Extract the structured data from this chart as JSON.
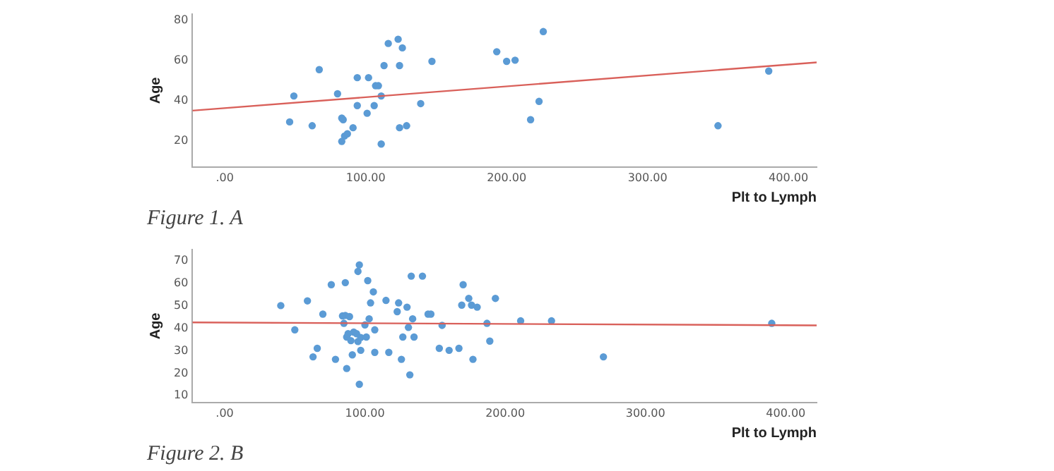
{
  "chart_data": [
    {
      "type": "scatter",
      "xlabel": "Plt to Lymph",
      "ylabel": "Age",
      "annotations": [
        "Figure 1. A"
      ],
      "xlim": [
        -23,
        420
      ],
      "ylim": [
        7,
        83
      ],
      "xticks": [
        {
          "value": 0,
          "label": ".00"
        },
        {
          "value": 100,
          "label": "100.00"
        },
        {
          "value": 200,
          "label": "200.00"
        },
        {
          "value": 300,
          "label": "300.00"
        },
        {
          "value": 400,
          "label": "400.00"
        }
      ],
      "yticks": [
        20,
        40,
        60,
        80
      ],
      "grid": false,
      "legend": false,
      "marker": "circle",
      "series": [
        {
          "type": "scatter",
          "color": "#5b9bd5",
          "x": [
            46,
            49,
            62,
            67,
            80,
            83,
            84,
            85,
            87,
            83,
            91,
            94,
            94,
            101,
            102,
            106,
            107,
            109,
            111,
            111,
            113,
            116,
            123,
            126,
            124,
            124,
            129,
            139,
            147,
            193,
            200,
            206,
            217,
            223,
            226,
            350,
            386
          ],
          "values": [
            29.4,
            42.3,
            27.5,
            55.4,
            43.4,
            31.3,
            30.5,
            22.4,
            23.5,
            19.7,
            26.5,
            37.5,
            51.4,
            33.7,
            51.4,
            37.5,
            47.4,
            47.4,
            42.3,
            18.4,
            57.4,
            68.4,
            70.5,
            66.2,
            57.4,
            26.5,
            27.5,
            38.5,
            59.5,
            64.3,
            59.5,
            60.1,
            30.5,
            39.6,
            74.3,
            27.5,
            54.7
          ]
        },
        {
          "type": "line",
          "color": "#d9605a",
          "marker": "none",
          "x": [
            -23,
            420
          ],
          "values": [
            35,
            59
          ]
        }
      ]
    },
    {
      "type": "scatter",
      "xlabel": "Plt to Lymph",
      "ylabel": "Age",
      "annotations": [
        "Figure 2. B"
      ],
      "xlim": [
        -23,
        422
      ],
      "ylim": [
        7,
        75
      ],
      "xticks": [
        {
          "value": 0,
          "label": ".00"
        },
        {
          "value": 100,
          "label": "100.00"
        },
        {
          "value": 200,
          "label": "200.00"
        },
        {
          "value": 300,
          "label": "300.00"
        },
        {
          "value": 400,
          "label": "400.00"
        }
      ],
      "yticks": [
        10,
        20,
        30,
        40,
        50,
        60,
        70
      ],
      "grid": false,
      "legend": false,
      "marker": "circle",
      "series": [
        {
          "type": "scatter",
          "color": "#5b9bd5",
          "x": [
            40,
            50,
            59,
            63,
            66,
            70,
            76,
            79,
            86,
            85,
            84,
            86,
            89,
            87,
            87,
            88,
            90,
            91,
            92,
            94,
            95,
            97,
            95,
            96,
            96,
            97,
            100,
            101,
            102,
            103,
            104,
            106,
            107,
            107,
            115,
            117,
            123,
            124,
            126,
            127,
            130,
            131,
            132,
            133,
            134,
            135,
            141,
            145,
            147,
            153,
            155,
            160,
            167,
            169,
            170,
            174,
            176,
            177,
            180,
            187,
            189,
            193,
            211,
            233,
            270,
            390
          ],
          "values": [
            50.1,
            39.3,
            52.2,
            27.3,
            31.1,
            46.3,
            59.4,
            26.2,
            60.3,
            42.2,
            45.5,
            45.7,
            45.2,
            22.1,
            36.1,
            37.6,
            34.5,
            28.2,
            38.3,
            37.6,
            34.1,
            35.9,
            65.3,
            68.2,
            15.1,
            30.2,
            41.5,
            36.1,
            61.2,
            44.2,
            51.3,
            56.2,
            39.3,
            29.3,
            52.4,
            29.3,
            47.4,
            51.3,
            26.2,
            36.1,
            49.4,
            40.4,
            19.3,
            63.2,
            44.2,
            36.1,
            63.2,
            46.3,
            46.3,
            31.1,
            41.3,
            30.2,
            31.1,
            50.3,
            59.4,
            53.3,
            50.3,
            26.2,
            49.4,
            42.2,
            34.3,
            53.3,
            43.3,
            43.3,
            27.3,
            42.2
          ]
        },
        {
          "type": "line",
          "color": "#d9605a",
          "marker": "none",
          "x": [
            -23,
            422
          ],
          "values": [
            42.6,
            41.3
          ]
        }
      ]
    }
  ]
}
